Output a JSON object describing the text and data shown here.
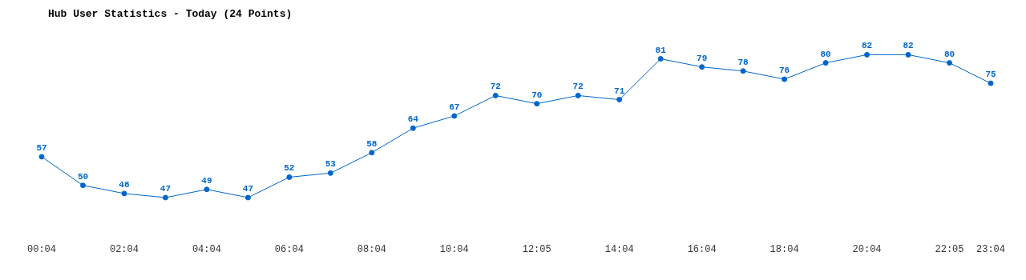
{
  "chart_data": {
    "type": "line",
    "title": "Hub User Statistics - Today (24 Points)",
    "categories": [
      "00:04",
      null,
      "02:04",
      null,
      "04:04",
      null,
      "06:04",
      null,
      "08:04",
      null,
      "10:04",
      null,
      "12:05",
      null,
      "14:04",
      null,
      "16:04",
      null,
      "18:04",
      null,
      "20:04",
      null,
      "22:05",
      "23:04"
    ],
    "series": [
      {
        "color": "#0066cc",
        "values": [
          57,
          50,
          48,
          47,
          49,
          47,
          52,
          53,
          58,
          64,
          67,
          72,
          70,
          72,
          71,
          81,
          79,
          78,
          76,
          80,
          82,
          82,
          80,
          75
        ]
      }
    ],
    "data_labels": true,
    "marker": "circle",
    "line_style": "solid",
    "grid": false,
    "legend": false
  }
}
